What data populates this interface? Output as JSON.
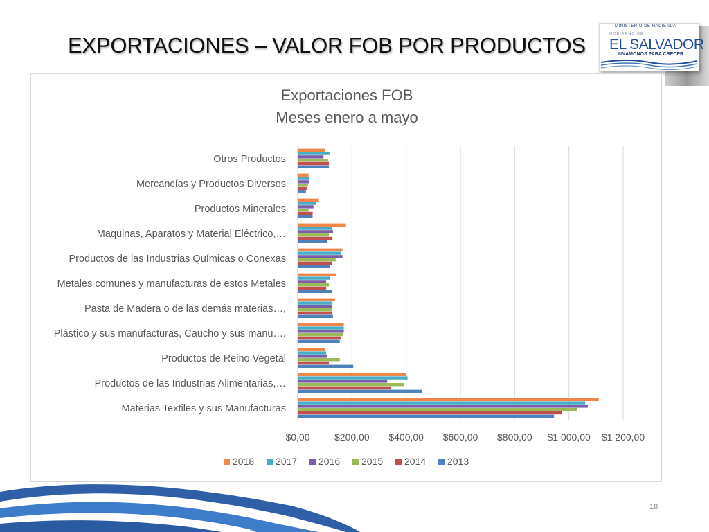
{
  "slide": {
    "title": "EXPORTACIONES – VALOR FOB POR PRODUCTOS",
    "page_number": "18"
  },
  "logo": {
    "ministry": "MINISTERIO DE HACIENDA",
    "gobierno": "GOBIERNO DE",
    "country": "EL SALVADOR",
    "slogan": "UNÁMONOS PARA CRECER",
    "color": "#1f4c97"
  },
  "chart_data": {
    "type": "bar",
    "orientation": "horizontal",
    "title": "Exportaciones FOB",
    "subtitle": "Meses enero a mayo",
    "categories": [
      "Otros Productos",
      "Mercancías y Productos Diversos",
      "Productos Minerales",
      "Maquinas, Aparatos y Material Eléctrico,…",
      "Productos de las Industrias Químicas o Conexas",
      "Metales comunes y manufacturas de estos Metales",
      "Pasta de Madera o de las demás materias…,",
      "Plástico y sus manufacturas, Caucho y sus manu…,",
      "Productos de Reino Vegetal",
      "Productos de las Industrias Alimentarias,…",
      "Materias Textiles y sus Manufacturas"
    ],
    "series": [
      {
        "name": "2018",
        "color": "#f0874a",
        "values": [
          102,
          40,
          78,
          178,
          165,
          142,
          138,
          170,
          100,
          400,
          1110
        ]
      },
      {
        "name": "2017",
        "color": "#4bacc6",
        "values": [
          118,
          42,
          68,
          128,
          160,
          118,
          128,
          170,
          105,
          405,
          1060
        ]
      },
      {
        "name": "2016",
        "color": "#7a5ea8",
        "values": [
          95,
          42,
          58,
          130,
          165,
          105,
          125,
          170,
          108,
          330,
          1070
        ]
      },
      {
        "name": "2015",
        "color": "#9bbb59",
        "values": [
          112,
          38,
          40,
          115,
          140,
          115,
          125,
          168,
          155,
          393,
          1030
        ]
      },
      {
        "name": "2014",
        "color": "#c0504d",
        "values": [
          115,
          33,
          55,
          128,
          125,
          105,
          128,
          160,
          115,
          345,
          975
        ]
      },
      {
        "name": "2013",
        "color": "#4f81bd",
        "values": [
          115,
          30,
          55,
          110,
          118,
          128,
          130,
          155,
          205,
          458,
          945
        ]
      }
    ],
    "xlim": [
      0,
      1200
    ],
    "x_ticks": [
      "$0,00",
      "$200,00",
      "$400,00",
      "$600,00",
      "$800,00",
      "$1 000,00",
      "$1 200,00"
    ],
    "legend_order": [
      "2018",
      "2017",
      "2016",
      "2015",
      "2014",
      "2013"
    ],
    "legend_position": "bottom",
    "grid": true
  }
}
